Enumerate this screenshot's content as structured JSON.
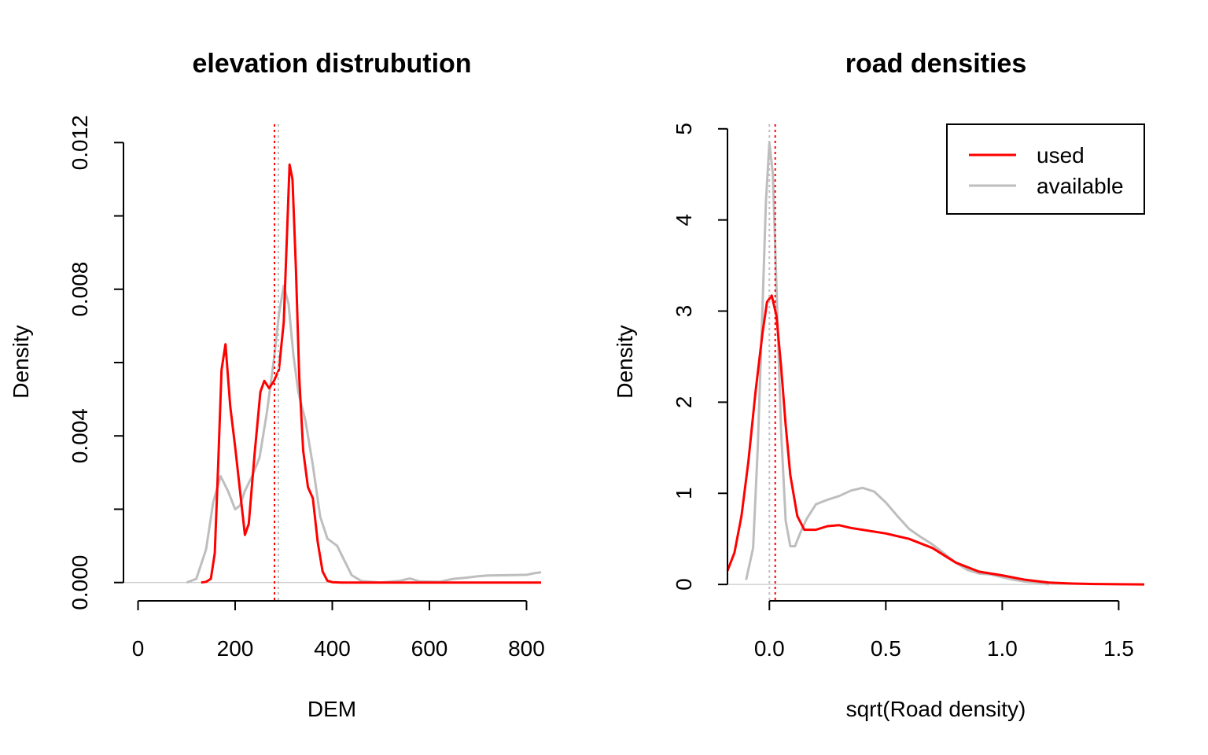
{
  "chart_data": [
    {
      "type": "line",
      "title": "elevation distrubution",
      "xlabel": "DEM",
      "ylabel": "Density",
      "xlim": [
        -30,
        830
      ],
      "ylim": [
        -0.0005,
        0.0125
      ],
      "x_ticks": [
        0,
        200,
        400,
        600,
        800
      ],
      "x_tick_labels": [
        "0",
        "200",
        "400",
        "600",
        "800"
      ],
      "y_ticks": [
        0,
        0.002,
        0.004,
        0.006,
        0.008,
        0.01,
        0.012
      ],
      "y_tick_labels": [
        "0.000",
        "",
        "0.004",
        "",
        "0.008",
        "",
        "0.012"
      ],
      "baseline": 0,
      "series": [
        {
          "name": "available",
          "color": "#bebebe",
          "x": [
            100,
            120,
            140,
            155,
            170,
            185,
            200,
            210,
            220,
            235,
            250,
            265,
            280,
            290,
            300,
            310,
            320,
            330,
            345,
            360,
            375,
            390,
            410,
            425,
            440,
            460,
            500,
            540,
            560,
            580,
            620,
            650,
            680,
            700,
            720,
            760,
            800,
            815,
            830
          ],
          "y": [
            0.0,
            0.0001,
            0.0009,
            0.0022,
            0.0029,
            0.0025,
            0.002,
            0.0021,
            0.0025,
            0.0029,
            0.0034,
            0.0046,
            0.0061,
            0.0073,
            0.0081,
            0.0076,
            0.0062,
            0.0052,
            0.0044,
            0.0032,
            0.0018,
            0.0012,
            0.001,
            0.0006,
            0.0002,
            4e-05,
            0.0,
            5e-05,
            0.00011,
            3e-05,
            2e-05,
            0.0001,
            0.00014,
            0.00017,
            0.00019,
            0.0002,
            0.00021,
            0.00025,
            0.00028
          ]
        },
        {
          "name": "used",
          "color": "#ff0000",
          "x": [
            130,
            140,
            150,
            158,
            165,
            172,
            180,
            190,
            200,
            210,
            220,
            228,
            240,
            252,
            260,
            270,
            280,
            290,
            300,
            307,
            312,
            318,
            325,
            332,
            340,
            350,
            360,
            370,
            380,
            390,
            400,
            420,
            500,
            600,
            700,
            830
          ],
          "y": [
            0.0,
            2e-05,
            0.0001,
            0.0008,
            0.0032,
            0.0058,
            0.0065,
            0.0048,
            0.0037,
            0.0025,
            0.0013,
            0.0016,
            0.0035,
            0.0052,
            0.0055,
            0.0053,
            0.0055,
            0.0058,
            0.0071,
            0.0096,
            0.0114,
            0.011,
            0.0086,
            0.0056,
            0.0036,
            0.0026,
            0.0023,
            0.0011,
            0.0003,
            5e-05,
            1e-05,
            0.0,
            0.0,
            0.0,
            0.0,
            0.0
          ]
        }
      ],
      "vlines": [
        {
          "series": "used",
          "x": 281,
          "color": "#ff0000"
        },
        {
          "series": "available",
          "x": 289,
          "color": "#bebebe"
        }
      ]
    },
    {
      "type": "line",
      "title": "road densities",
      "xlabel": "sqrt(Road density)",
      "ylabel": "Density",
      "xlim": [
        -0.18,
        1.61
      ],
      "ylim": [
        -0.18,
        5.05
      ],
      "x_ticks": [
        0.0,
        0.5,
        1.0,
        1.5
      ],
      "x_tick_labels": [
        "0.0",
        "0.5",
        "1.0",
        "1.5"
      ],
      "y_ticks": [
        0,
        1,
        2,
        3,
        4,
        5
      ],
      "y_tick_labels": [
        "0",
        "1",
        "2",
        "3",
        "4",
        "5"
      ],
      "baseline": 0,
      "legend": {
        "position": "top-right",
        "entries": [
          {
            "label": "used",
            "color": "#ff0000"
          },
          {
            "label": "available",
            "color": "#bebebe"
          }
        ]
      },
      "series": [
        {
          "name": "available",
          "color": "#bebebe",
          "x": [
            -0.1,
            -0.07,
            -0.05,
            -0.03,
            -0.015,
            0.0,
            0.015,
            0.03,
            0.05,
            0.07,
            0.09,
            0.11,
            0.13,
            0.16,
            0.2,
            0.25,
            0.3,
            0.35,
            0.4,
            0.45,
            0.5,
            0.55,
            0.6,
            0.65,
            0.7,
            0.75,
            0.8,
            0.85,
            0.9,
            0.95,
            1.0,
            1.05,
            1.1,
            1.15,
            1.2
          ],
          "y": [
            0.05,
            0.4,
            1.5,
            3.0,
            4.2,
            4.85,
            4.5,
            3.3,
            1.7,
            0.7,
            0.42,
            0.42,
            0.55,
            0.72,
            0.88,
            0.93,
            0.97,
            1.03,
            1.06,
            1.02,
            0.9,
            0.75,
            0.61,
            0.52,
            0.44,
            0.34,
            0.24,
            0.16,
            0.12,
            0.11,
            0.08,
            0.05,
            0.03,
            0.02,
            0.0
          ]
        },
        {
          "name": "used",
          "color": "#ff0000",
          "x": [
            -0.18,
            -0.15,
            -0.12,
            -0.09,
            -0.06,
            -0.03,
            -0.01,
            0.01,
            0.03,
            0.05,
            0.07,
            0.09,
            0.12,
            0.15,
            0.2,
            0.25,
            0.3,
            0.35,
            0.4,
            0.5,
            0.6,
            0.7,
            0.8,
            0.9,
            1.0,
            1.1,
            1.2,
            1.3,
            1.4,
            1.5,
            1.61
          ],
          "y": [
            0.15,
            0.35,
            0.75,
            1.35,
            2.1,
            2.75,
            3.1,
            3.17,
            2.95,
            2.4,
            1.75,
            1.2,
            0.75,
            0.6,
            0.6,
            0.64,
            0.65,
            0.62,
            0.6,
            0.56,
            0.5,
            0.4,
            0.24,
            0.14,
            0.1,
            0.05,
            0.02,
            0.01,
            0.005,
            0.002,
            0.0
          ]
        }
      ],
      "vlines": [
        {
          "series": "available",
          "x": 0.0,
          "color": "#bebebe"
        },
        {
          "series": "used",
          "x": 0.025,
          "color": "#ff0000"
        }
      ]
    }
  ]
}
